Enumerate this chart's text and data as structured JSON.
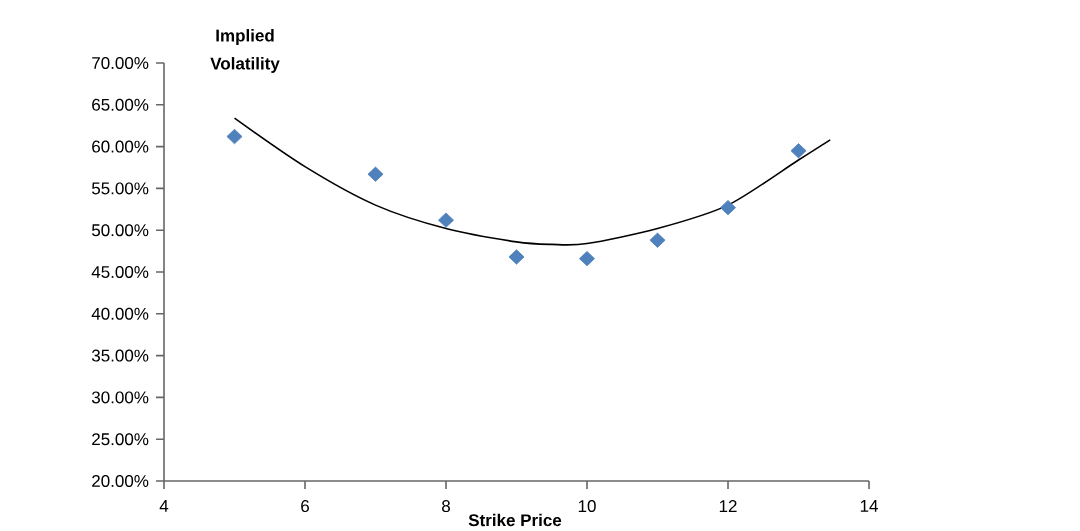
{
  "chart_data": {
    "type": "scatter",
    "ylabel": "Implied Volatility",
    "xlabel": "Strike Price",
    "xlim": [
      4,
      14
    ],
    "xticks": [
      4,
      6,
      8,
      10,
      12,
      14
    ],
    "ylim": [
      20,
      70
    ],
    "yticks": [
      {
        "value": 20,
        "label": "20.00%"
      },
      {
        "value": 25,
        "label": "25.00%"
      },
      {
        "value": 30,
        "label": "30.00%"
      },
      {
        "value": 35,
        "label": "35.00%"
      },
      {
        "value": 40,
        "label": "40.00%"
      },
      {
        "value": 45,
        "label": "45.00%"
      },
      {
        "value": 50,
        "label": "50.00%"
      },
      {
        "value": 55,
        "label": "55.00%"
      },
      {
        "value": 60,
        "label": "60.00%"
      },
      {
        "value": 65,
        "label": "65.00%"
      },
      {
        "value": 70,
        "label": "70.00%"
      }
    ],
    "marker": "diamond",
    "series": [
      {
        "color": "#4f81bd",
        "x": [
          5,
          7,
          8,
          9,
          10,
          11,
          12,
          13
        ],
        "values": [
          61.2,
          56.7,
          51.2,
          46.8,
          46.6,
          48.8,
          52.7,
          59.5
        ]
      },
      {
        "type": "line",
        "color": "#000000",
        "marker": "none",
        "x": [
          5,
          6,
          7,
          8,
          9,
          9.5,
          10,
          11,
          12,
          13,
          13.45
        ],
        "values": [
          63.4,
          57.6,
          53.0,
          50.2,
          48.6,
          48.3,
          48.4,
          50.2,
          53.0,
          58.4,
          60.8
        ]
      }
    ]
  }
}
